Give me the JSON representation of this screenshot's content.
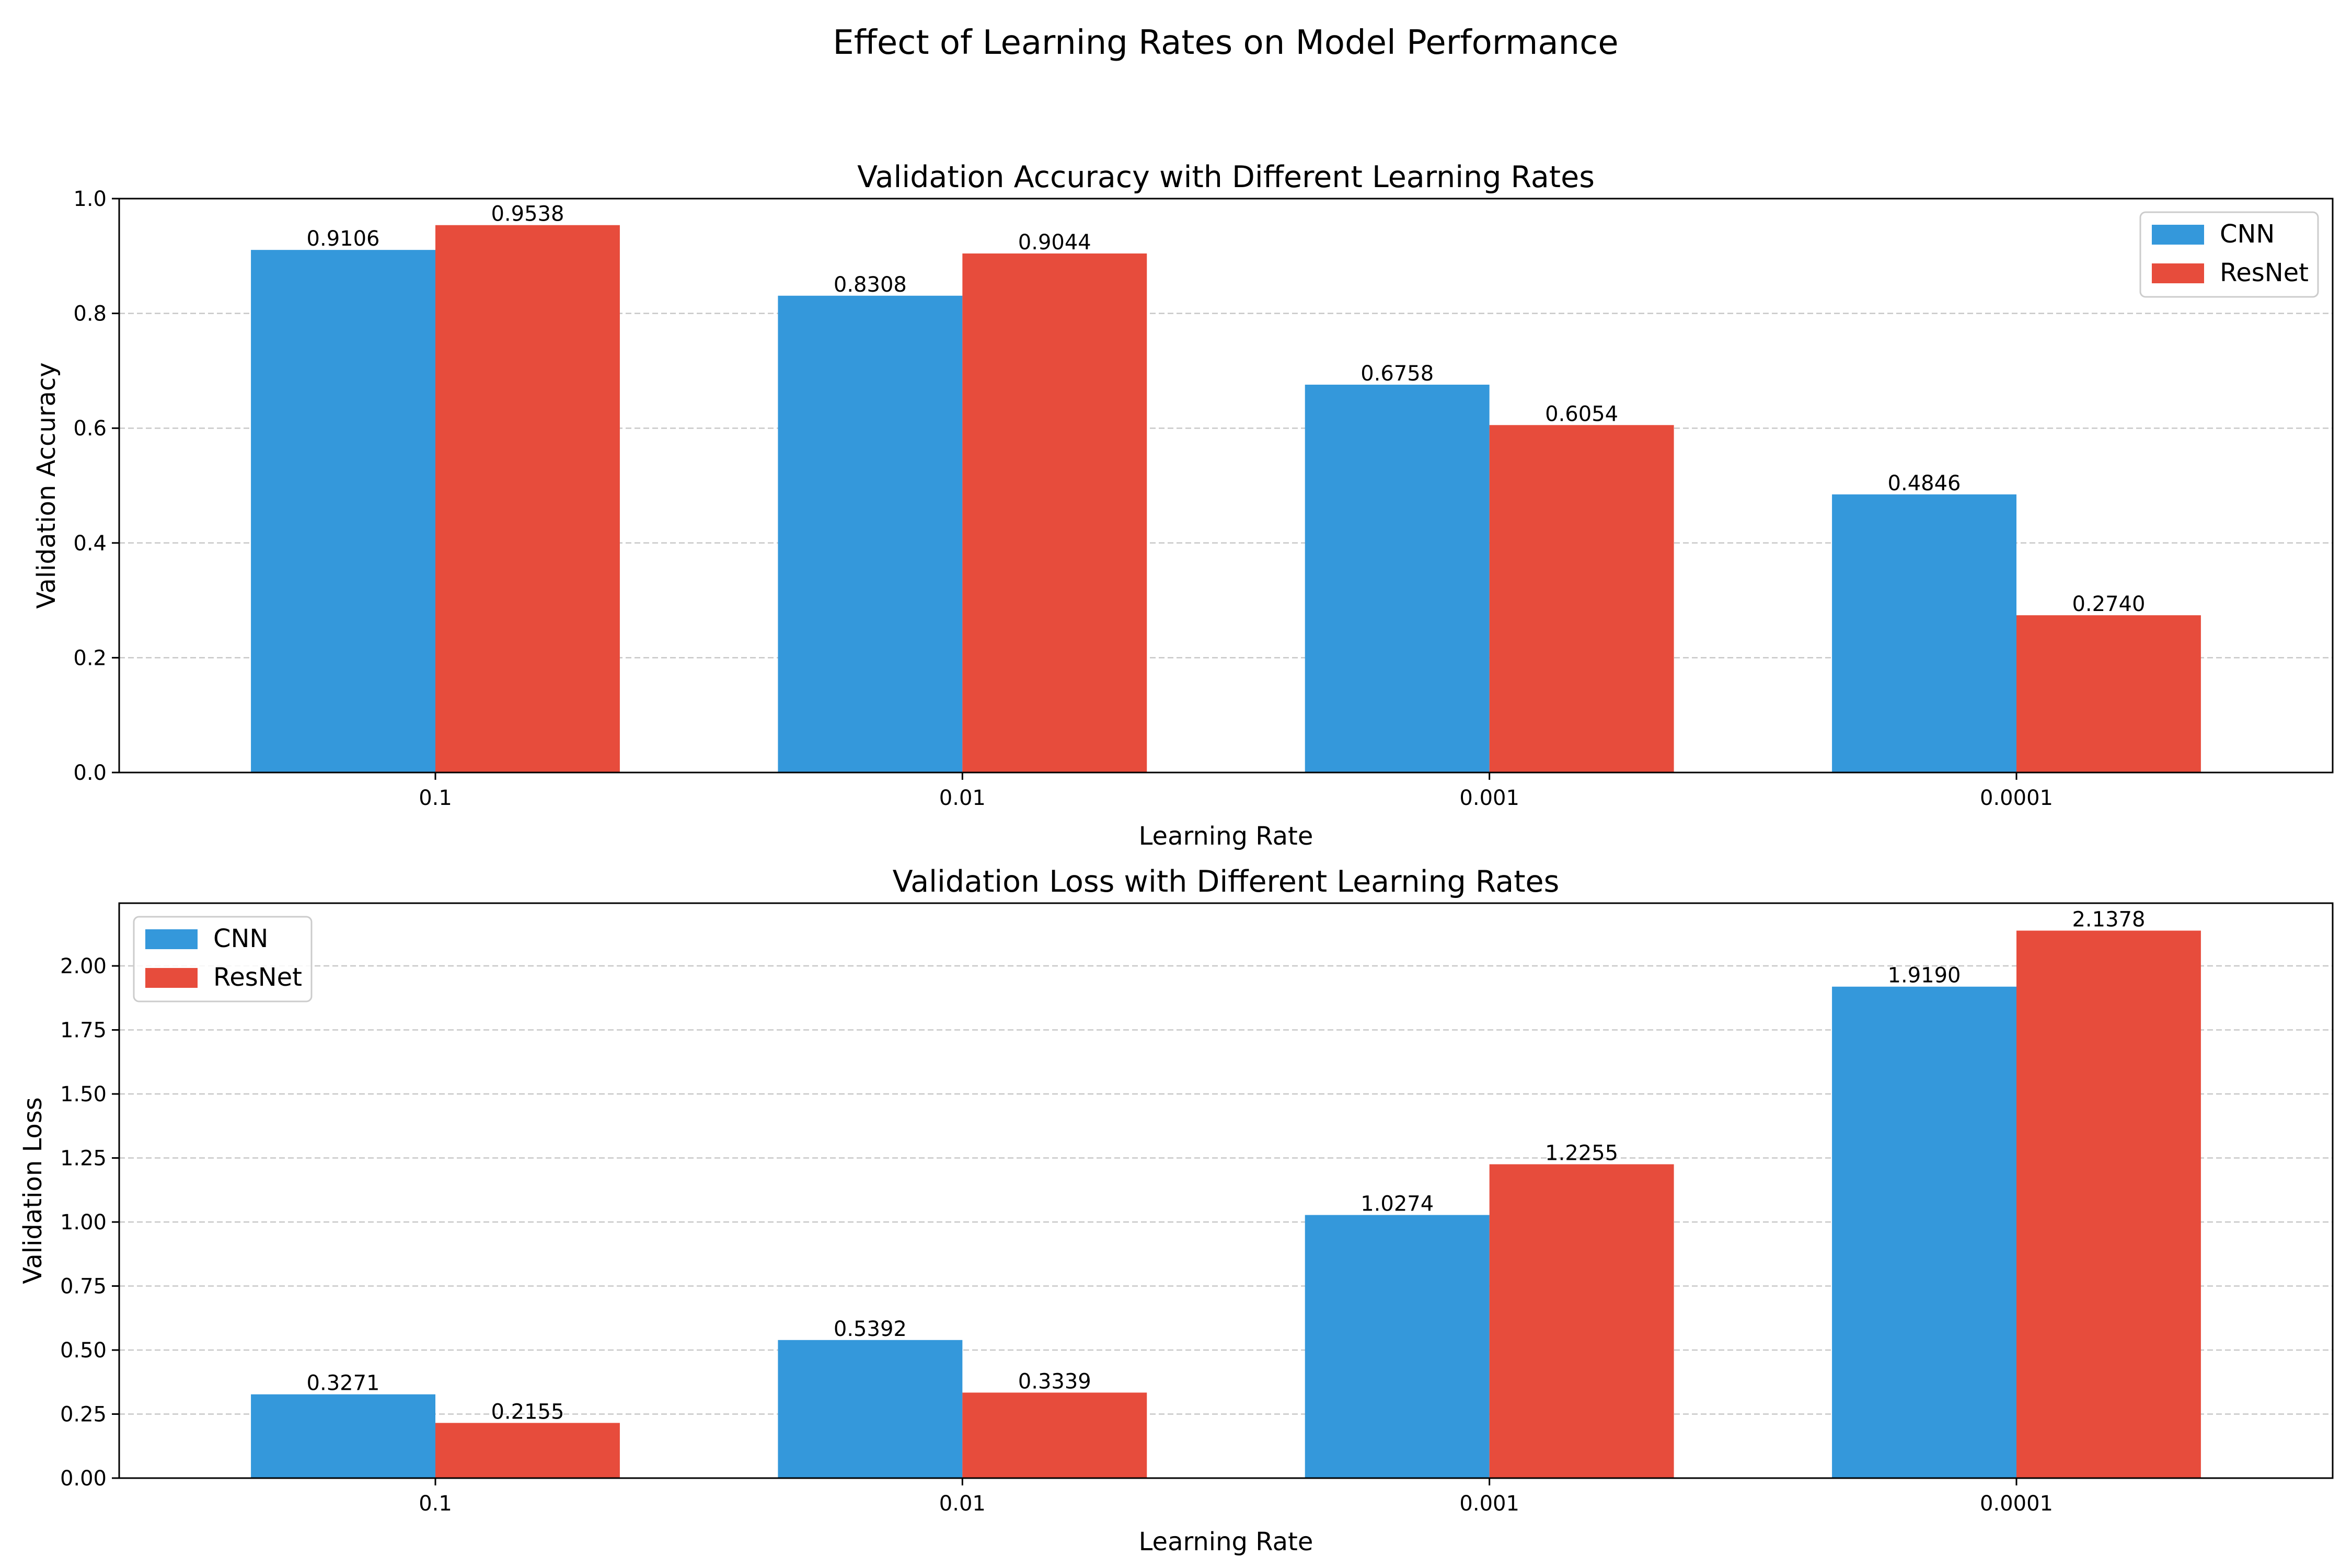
{
  "figure": {
    "suptitle": "Effect of Learning Rates on Model Performance"
  },
  "colors": {
    "cnn": "#3498db",
    "resnet": "#e74c3c",
    "grid": "#c8c8c8",
    "axis": "#000000"
  },
  "chart_data": [
    {
      "type": "bar",
      "title": "Validation Accuracy with Different Learning Rates",
      "xlabel": "Learning Rate",
      "ylabel": "Validation Accuracy",
      "categories": [
        "0.1",
        "0.01",
        "0.001",
        "0.0001"
      ],
      "series": [
        {
          "name": "CNN",
          "values": [
            0.9106,
            0.8308,
            0.6758,
            0.4846
          ]
        },
        {
          "name": "ResNet",
          "values": [
            0.9538,
            0.9044,
            0.6054,
            0.274
          ]
        }
      ],
      "ylim": [
        0,
        1.0
      ],
      "yticks": [
        0.0,
        0.2,
        0.4,
        0.6,
        0.8,
        1.0
      ],
      "ytick_labels": [
        "0.0",
        "0.2",
        "0.4",
        "0.6",
        "0.8",
        "1.0"
      ],
      "grid": "y-dashed",
      "legend": "upper-right"
    },
    {
      "type": "bar",
      "title": "Validation Loss with Different Learning Rates",
      "xlabel": "Learning Rate",
      "ylabel": "Validation Loss",
      "categories": [
        "0.1",
        "0.01",
        "0.001",
        "0.0001"
      ],
      "series": [
        {
          "name": "CNN",
          "values": [
            0.3271,
            0.5392,
            1.0274,
            1.919
          ]
        },
        {
          "name": "ResNet",
          "values": [
            0.2155,
            0.3339,
            1.2255,
            2.1378
          ]
        }
      ],
      "ylim": [
        0,
        2.245
      ],
      "yticks": [
        0.0,
        0.25,
        0.5,
        0.75,
        1.0,
        1.25,
        1.5,
        1.75,
        2.0
      ],
      "ytick_labels": [
        "0.00",
        "0.25",
        "0.50",
        "0.75",
        "1.00",
        "1.25",
        "1.50",
        "1.75",
        "2.00"
      ],
      "grid": "y-dashed",
      "legend": "upper-left"
    }
  ]
}
